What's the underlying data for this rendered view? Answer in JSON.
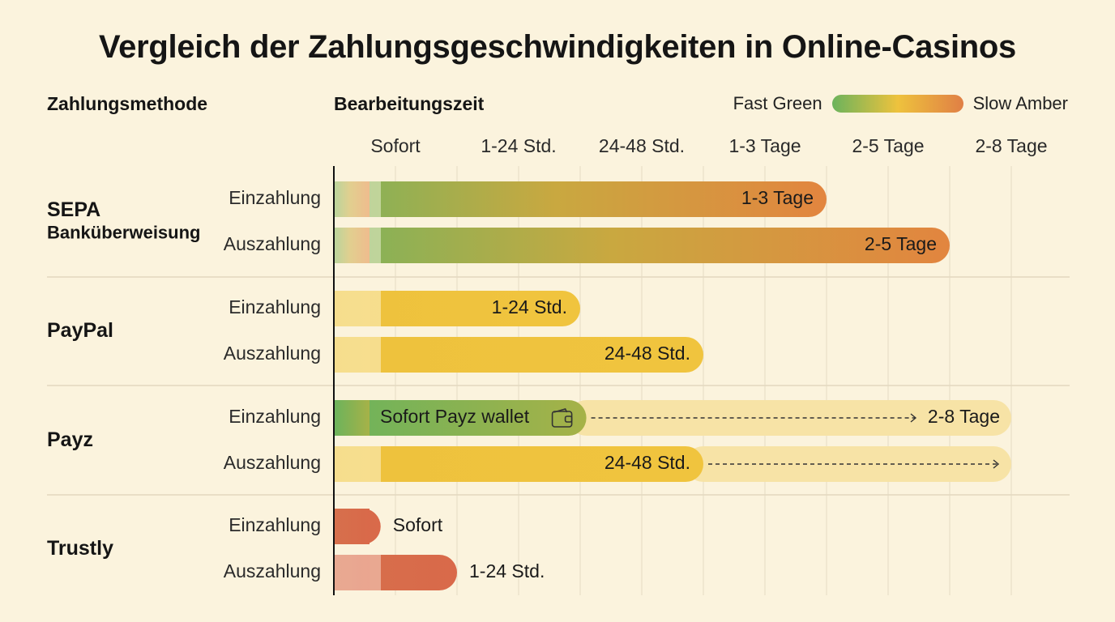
{
  "title": "Vergleich der Zahlungsgeschwindigkeiten in Online-Casinos",
  "headers": {
    "method": "Zahlungsmethode",
    "time": "Bearbeitungszeit"
  },
  "legend": {
    "fast": "Fast Green",
    "slow": "Slow Amber",
    "colors": {
      "fast": "#6bb35c",
      "mid": "#eec23d",
      "slow": "#e07f45"
    }
  },
  "chart_data": {
    "type": "bar",
    "orientation": "horizontal",
    "categories": [
      "Sofort",
      "1-24 Std.",
      "24-48 Std.",
      "1-3 Tage",
      "2-5 Tage",
      "2-8 Tage"
    ],
    "grid": true,
    "methods": [
      {
        "name": "SEPA",
        "subtitle": "Banküberweisung",
        "rows": [
          {
            "type": "Einzahlung",
            "end": 4.0,
            "label": "1-3 Tage",
            "fill": "green-to-amber"
          },
          {
            "type": "Auszahlung",
            "end": 5.0,
            "label": "2-5 Tage",
            "fill": "green-to-amber"
          }
        ]
      },
      {
        "name": "PayPal",
        "subtitle": "",
        "rows": [
          {
            "type": "Einzahlung",
            "end": 2.0,
            "label": "1-24 Std.",
            "fill": "yellow"
          },
          {
            "type": "Auszahlung",
            "end": 3.0,
            "label": "24-48 Std.",
            "fill": "yellow"
          }
        ]
      },
      {
        "name": "Payz",
        "subtitle": "",
        "rows": [
          {
            "type": "Einzahlung",
            "end": 2.05,
            "label": "Sofort Payz wallet",
            "fill": "green",
            "extension_end": 5.5,
            "extension_label": "2-8 Tage",
            "icon": "wallet-icon"
          },
          {
            "type": "Auszahlung",
            "end": 3.0,
            "label": "24-48 Std.",
            "fill": "yellow",
            "extension_end": 5.5,
            "extension_label": ""
          }
        ]
      },
      {
        "name": "Trustly",
        "subtitle": "",
        "rows": [
          {
            "type": "Einzahlung",
            "end": 0.38,
            "label": "Sofort",
            "fill": "red",
            "label_outside": true
          },
          {
            "type": "Auszahlung",
            "end": 1.0,
            "label": "1-24 Std.",
            "fill": "red",
            "label_outside": true
          }
        ]
      }
    ]
  }
}
